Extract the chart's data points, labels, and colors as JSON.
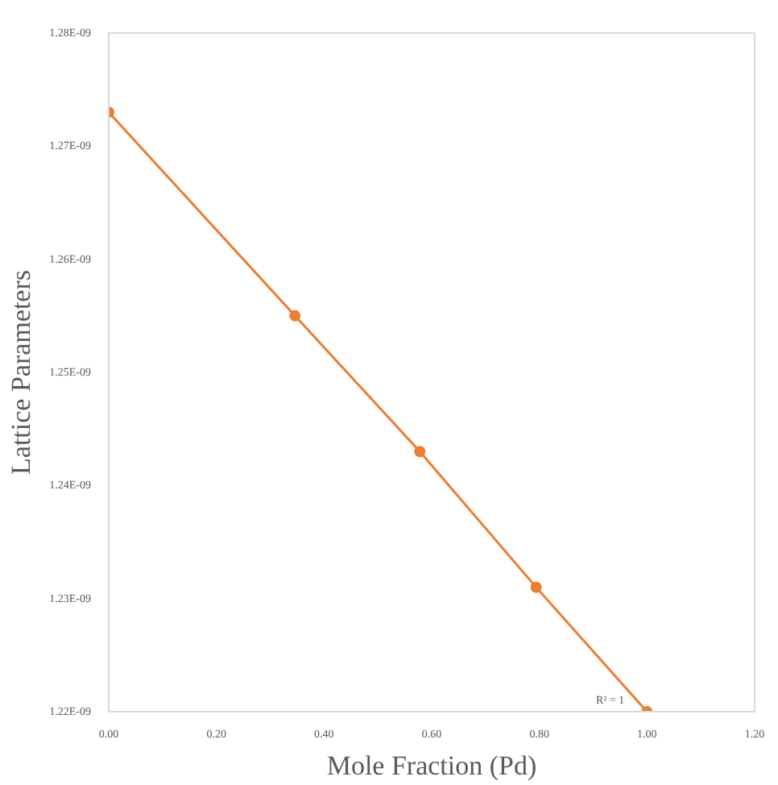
{
  "chart_data": {
    "type": "line",
    "xlabel": "Mole Fraction (Pd)",
    "ylabel": "Lattice Parameters",
    "x": [
      0,
      0.346,
      0.578,
      0.794,
      1.0
    ],
    "series": [
      {
        "color": "#ed7d31",
        "values": [
          1.273e-09,
          1.255e-09,
          1.243e-09,
          1.231e-09,
          1.22e-09
        ]
      }
    ],
    "xlim": [
      0,
      1.2
    ],
    "xticks": [
      {
        "value": 0,
        "label": "0.00"
      },
      {
        "value": 0.2,
        "label": "0.20"
      },
      {
        "value": 0.4,
        "label": "0.40"
      },
      {
        "value": 0.6,
        "label": "0.60"
      },
      {
        "value": 0.8,
        "label": "0.80"
      },
      {
        "value": 1.0,
        "label": "1.00"
      },
      {
        "value": 1.2,
        "label": "1.20"
      }
    ],
    "ylim": [
      1.22e-09,
      1.28e-09
    ],
    "yticks": [
      {
        "value": 1.22e-09,
        "label": "1.22E-09"
      },
      {
        "value": 1.23e-09,
        "label": "1.23E-09"
      },
      {
        "value": 1.24e-09,
        "label": "1.24E-09"
      },
      {
        "value": 1.25e-09,
        "label": "1.25E-09"
      },
      {
        "value": 1.26e-09,
        "label": "1.26E-09"
      },
      {
        "value": 1.27e-09,
        "label": "1.27E-09"
      },
      {
        "value": 1.28e-09,
        "label": "1.28E-09"
      }
    ],
    "annotations": [
      "R² = 1"
    ],
    "marker": "circle",
    "line_style": "solid",
    "grid": false
  }
}
